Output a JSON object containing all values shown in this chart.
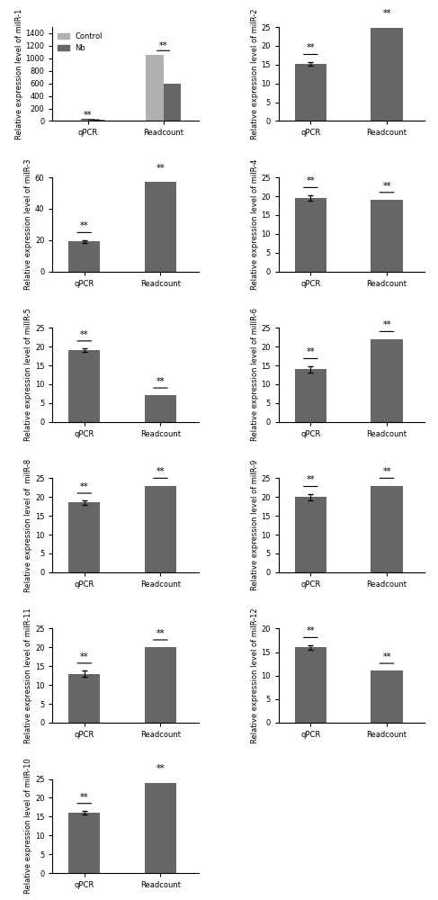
{
  "panels": [
    {
      "name": "milR-1",
      "ylabel": "Relative expression level of milR-1",
      "has_control": true,
      "ylim": [
        0,
        1500
      ],
      "yticks": [
        0,
        200,
        400,
        600,
        800,
        1000,
        1200,
        1400
      ],
      "groups": [
        "qPCR",
        "Readcount"
      ],
      "control_vals": [
        0,
        1050
      ],
      "nb_vals": [
        18,
        600
      ],
      "nb_errors": [
        1.5,
        0
      ],
      "control_errors": [
        0,
        0
      ],
      "sig_qpcr": true,
      "sig_readcount": true,
      "show_legend": true,
      "broken_axis": true
    },
    {
      "name": "milR-2",
      "ylabel": "Relative expression level of milR-2",
      "has_control": false,
      "ylim": [
        0,
        25
      ],
      "yticks": [
        0,
        5,
        10,
        15,
        20,
        25
      ],
      "groups": [
        "qPCR",
        "Readcount"
      ],
      "nb_vals": [
        15.2,
        24.8
      ],
      "nb_errors": [
        0.5,
        0
      ],
      "sig_qpcr": true,
      "sig_readcount": true
    },
    {
      "name": "milR-3",
      "ylabel": "Relative expression level of milR-3",
      "has_control": false,
      "ylim": [
        0,
        60
      ],
      "yticks": [
        0,
        20,
        40,
        60
      ],
      "groups": [
        "qPCR",
        "Readcount"
      ],
      "nb_vals": [
        19,
        57
      ],
      "nb_errors": [
        1.0,
        0
      ],
      "sig_qpcr": true,
      "sig_readcount": true
    },
    {
      "name": "milR-4",
      "ylabel": "Relative expression level of milR-4",
      "has_control": false,
      "ylim": [
        0,
        25
      ],
      "yticks": [
        0,
        5,
        10,
        15,
        20,
        25
      ],
      "groups": [
        "qPCR",
        "Readcount"
      ],
      "nb_vals": [
        19.5,
        19.0
      ],
      "nb_errors": [
        0.8,
        0
      ],
      "sig_qpcr": true,
      "sig_readcount": true
    },
    {
      "name": "milR-5",
      "ylabel": "Relative expression level of milIR-5",
      "has_control": false,
      "ylim": [
        0,
        25
      ],
      "yticks": [
        0,
        5,
        10,
        15,
        20,
        25
      ],
      "groups": [
        "qPCR",
        "Readcount"
      ],
      "nb_vals": [
        19,
        7
      ],
      "nb_errors": [
        0.5,
        0
      ],
      "sig_qpcr": true,
      "sig_readcount": true
    },
    {
      "name": "milR-6",
      "ylabel": "Relative expression level of milIR-6",
      "has_control": false,
      "ylim": [
        0,
        25
      ],
      "yticks": [
        0,
        5,
        10,
        15,
        20,
        25
      ],
      "groups": [
        "qPCR",
        "Readcount"
      ],
      "nb_vals": [
        14,
        22
      ],
      "nb_errors": [
        0.8,
        0
      ],
      "sig_qpcr": true,
      "sig_readcount": true
    },
    {
      "name": "milR-8",
      "ylabel": "Relative expression level of  milR-8",
      "has_control": false,
      "ylim": [
        0,
        25
      ],
      "yticks": [
        0,
        5,
        10,
        15,
        20,
        25
      ],
      "groups": [
        "qPCR",
        "Readcount"
      ],
      "nb_vals": [
        18.5,
        23
      ],
      "nb_errors": [
        0.5,
        0
      ],
      "sig_qpcr": true,
      "sig_readcount": true
    },
    {
      "name": "milR-9",
      "ylabel": "Relative expression level of milR-9",
      "has_control": false,
      "ylim": [
        0,
        25
      ],
      "yticks": [
        0,
        5,
        10,
        15,
        20,
        25
      ],
      "groups": [
        "qPCR",
        "Readcount"
      ],
      "nb_vals": [
        20,
        23
      ],
      "nb_errors": [
        0.8,
        0
      ],
      "sig_qpcr": true,
      "sig_readcount": true
    },
    {
      "name": "milR-11",
      "ylabel": "Relative expression level of milR-11",
      "has_control": false,
      "ylim": [
        0,
        25
      ],
      "yticks": [
        0,
        5,
        10,
        15,
        20,
        25
      ],
      "groups": [
        "qPCR",
        "Readcount"
      ],
      "nb_vals": [
        13,
        20
      ],
      "nb_errors": [
        0.8,
        0
      ],
      "sig_qpcr": true,
      "sig_readcount": true
    },
    {
      "name": "milR-12",
      "ylabel": "Relative expression level of milR-12",
      "has_control": false,
      "ylim": [
        0,
        20
      ],
      "yticks": [
        0,
        5,
        10,
        15,
        20
      ],
      "groups": [
        "qPCR",
        "Readcount"
      ],
      "nb_vals": [
        16,
        11
      ],
      "nb_errors": [
        0.5,
        0
      ],
      "sig_qpcr": true,
      "sig_readcount": true
    },
    {
      "name": "milR-10",
      "ylabel": "Relative expression level of milR-10",
      "has_control": false,
      "ylim": [
        0,
        25
      ],
      "yticks": [
        0,
        5,
        10,
        15,
        20,
        25
      ],
      "groups": [
        "qPCR",
        "Readcount"
      ],
      "nb_vals": [
        16,
        24
      ],
      "nb_errors": [
        0.5,
        0
      ],
      "sig_qpcr": true,
      "sig_readcount": true
    }
  ],
  "dark_gray": "#666666",
  "light_gray": "#b0b0b0",
  "bar_width": 0.5,
  "label_fontsize": 6,
  "tick_fontsize": 6,
  "sig_fontsize": 7
}
